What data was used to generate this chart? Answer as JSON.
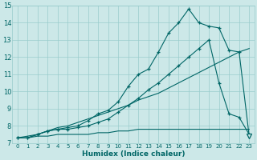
{
  "xlabel": "Humidex (Indice chaleur)",
  "bg_color": "#cce8e8",
  "grid_color": "#99cccc",
  "line_color": "#006666",
  "xlim": [
    -0.5,
    23.5
  ],
  "ylim": [
    7,
    15
  ],
  "yticks": [
    7,
    8,
    9,
    10,
    11,
    12,
    13,
    14,
    15
  ],
  "xticks": [
    0,
    1,
    2,
    3,
    4,
    5,
    6,
    7,
    8,
    9,
    10,
    11,
    12,
    13,
    14,
    15,
    16,
    17,
    18,
    19,
    20,
    21,
    22,
    23
  ],
  "series_flat_x": [
    0,
    1,
    2,
    3,
    4,
    5,
    6,
    7,
    8,
    9,
    10,
    11,
    12,
    13,
    14,
    15,
    16,
    17,
    18,
    19,
    20,
    21,
    22,
    23
  ],
  "series_flat_y": [
    7.3,
    7.3,
    7.4,
    7.4,
    7.5,
    7.5,
    7.5,
    7.5,
    7.6,
    7.6,
    7.7,
    7.7,
    7.8,
    7.8,
    7.8,
    7.8,
    7.8,
    7.8,
    7.8,
    7.8,
    7.8,
    7.8,
    7.8,
    7.8
  ],
  "series_diag_x": [
    0,
    1,
    2,
    3,
    4,
    5,
    6,
    7,
    8,
    9,
    10,
    11,
    12,
    13,
    14,
    15,
    16,
    17,
    18,
    19,
    20,
    21,
    22,
    23
  ],
  "series_diag_y": [
    7.3,
    7.4,
    7.5,
    7.7,
    7.9,
    8.0,
    8.2,
    8.4,
    8.6,
    8.8,
    9.0,
    9.2,
    9.5,
    9.7,
    9.9,
    10.2,
    10.5,
    10.8,
    11.1,
    11.4,
    11.7,
    12.0,
    12.3,
    12.5
  ],
  "series_peak1_x": [
    0,
    1,
    2,
    3,
    4,
    5,
    6,
    7,
    8,
    9,
    10,
    11,
    12,
    13,
    14,
    15,
    16,
    17,
    18,
    19,
    20,
    21,
    22,
    23
  ],
  "series_peak1_y": [
    7.3,
    7.3,
    7.5,
    7.7,
    7.8,
    7.8,
    7.9,
    8.0,
    8.2,
    8.4,
    8.8,
    9.2,
    9.6,
    10.1,
    10.5,
    11.0,
    11.5,
    12.0,
    12.5,
    13.0,
    10.5,
    8.7,
    8.5,
    7.5
  ],
  "series_peak2_x": [
    0,
    1,
    2,
    3,
    4,
    5,
    6,
    7,
    8,
    9,
    10,
    11,
    12,
    13,
    14,
    15,
    16,
    17,
    18,
    19,
    20,
    21,
    22,
    23
  ],
  "series_peak2_y": [
    7.3,
    7.3,
    7.5,
    7.7,
    7.8,
    7.9,
    8.0,
    8.3,
    8.7,
    8.9,
    9.4,
    10.3,
    11.0,
    11.3,
    12.3,
    13.4,
    14.0,
    14.8,
    14.0,
    13.8,
    13.7,
    12.4,
    12.3,
    7.4
  ]
}
